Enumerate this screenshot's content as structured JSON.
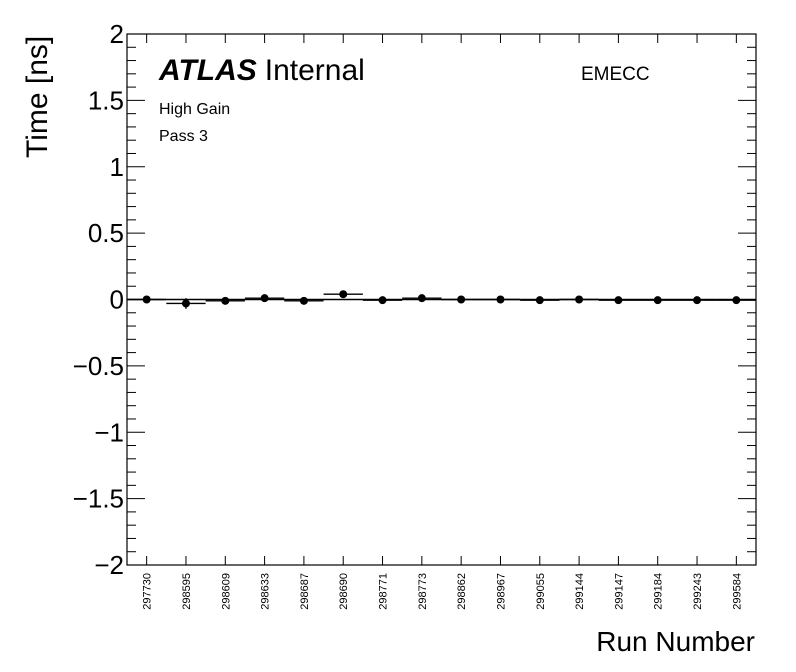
{
  "chart_data": {
    "type": "scatter",
    "title": "",
    "ylabel": "Time [ns]",
    "xlabel": "Run Number",
    "ylim": [
      -2,
      2
    ],
    "yticks": [
      "2",
      "1.5",
      "1",
      "0.5",
      "0",
      "−0.5",
      "−1",
      "−1.5",
      "−2"
    ],
    "yticks_values": [
      2,
      1.5,
      1,
      0.5,
      0,
      -0.5,
      -1,
      -1.5,
      -2
    ],
    "categories": [
      "297730",
      "298595",
      "298609",
      "298633",
      "298687",
      "298690",
      "298771",
      "298773",
      "298862",
      "298967",
      "299055",
      "299144",
      "299147",
      "299184",
      "299243",
      "299584"
    ],
    "values": [
      0.0,
      -0.03,
      -0.01,
      0.01,
      -0.01,
      0.04,
      -0.005,
      0.01,
      0.0,
      0.0,
      -0.005,
      0.0,
      -0.005,
      -0.005,
      -0.005,
      -0.005
    ],
    "errors": [
      0.005,
      0.04,
      0.01,
      0.005,
      0.005,
      0.01,
      0.005,
      0.005,
      0.005,
      0.005,
      0.005,
      0.005,
      0.005,
      0.005,
      0.005,
      0.005
    ],
    "reference_line": 0,
    "grid": false,
    "marker_color": "#000000"
  },
  "annotations": {
    "atlas_bold": "ATLAS",
    "atlas_rest": "Internal",
    "gain": "High Gain",
    "pass": "Pass 3",
    "region": "EMECC"
  }
}
